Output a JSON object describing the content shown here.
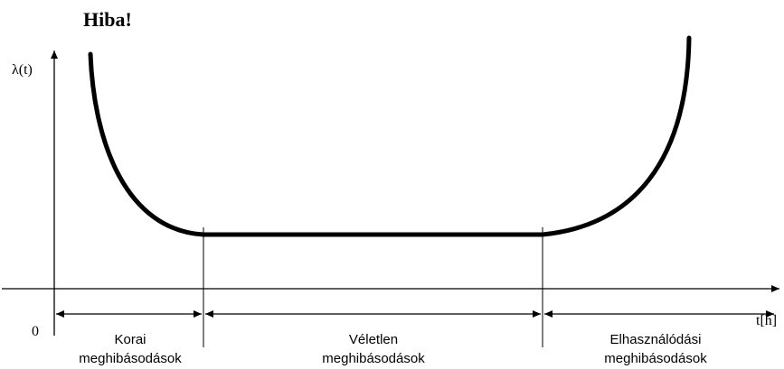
{
  "title": "Hiba!",
  "axes": {
    "y_label": "λ(t)",
    "x_label": "t[h]",
    "origin_label": "0"
  },
  "regions": [
    {
      "line1": "Korai",
      "line2": "meghibásodások"
    },
    {
      "line1": "Véletlen",
      "line2": "meghibásodások"
    },
    {
      "line1": "Elhasználódási",
      "line2": "meghibásodások"
    }
  ],
  "colors": {
    "ink": "#000000",
    "background": "#ffffff"
  }
}
